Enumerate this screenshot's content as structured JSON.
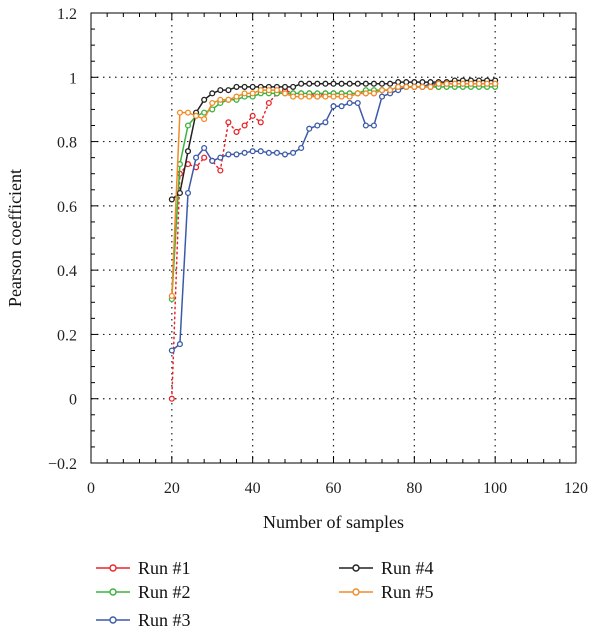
{
  "chart_data": {
    "type": "line",
    "xlabel": "Number of samples",
    "ylabel": "Pearson coefficient",
    "xlim": [
      0,
      120
    ],
    "ylim": [
      -0.2,
      1.2
    ],
    "x_ticks": [
      0,
      20,
      40,
      60,
      80,
      100,
      120
    ],
    "y_ticks": [
      -0.2,
      0,
      0.2,
      0.4,
      0.6,
      0.8,
      1,
      1.2
    ],
    "x_tick_labels": [
      "0",
      "20",
      "40",
      "60",
      "80",
      "100",
      "120"
    ],
    "y_tick_labels": [
      "−0.2",
      "0",
      "0.2",
      "0.4",
      "0.6",
      "0.8",
      "1",
      "1.2"
    ],
    "grid": true,
    "legend_position": "bottom",
    "series": [
      {
        "name": "Run #1",
        "color": "#e8262a",
        "linestyle": "dotted",
        "x": [
          20,
          22,
          24,
          26,
          28,
          30,
          32,
          34,
          36,
          38,
          40,
          42,
          44,
          46,
          48,
          50,
          52,
          54,
          56,
          58,
          60,
          62,
          64,
          66,
          68,
          70,
          72,
          74,
          76,
          78,
          80,
          82,
          84,
          86,
          88,
          90,
          92,
          94,
          96,
          98,
          100
        ],
        "y": [
          0.0,
          0.7,
          0.73,
          0.72,
          0.75,
          0.74,
          0.71,
          0.86,
          0.83,
          0.85,
          0.88,
          0.86,
          0.92,
          0.95,
          0.96,
          0.95,
          0.95,
          0.95,
          0.94,
          0.95,
          0.95,
          0.95,
          0.95,
          0.95,
          0.95,
          0.95,
          0.96,
          0.96,
          0.97,
          0.97,
          0.97,
          0.97,
          0.97,
          0.97,
          0.98,
          0.98,
          0.98,
          0.98,
          0.98,
          0.98,
          0.98
        ]
      },
      {
        "name": "Run #2",
        "color": "#3cb43c",
        "linestyle": "solid",
        "x": [
          20,
          22,
          24,
          26,
          28,
          30,
          32,
          34,
          36,
          38,
          40,
          42,
          44,
          46,
          48,
          50,
          52,
          54,
          56,
          58,
          60,
          62,
          64,
          66,
          68,
          70,
          72,
          74,
          76,
          78,
          80,
          82,
          84,
          86,
          88,
          90,
          92,
          94,
          96,
          98,
          100
        ],
        "y": [
          0.31,
          0.73,
          0.85,
          0.88,
          0.89,
          0.9,
          0.92,
          0.93,
          0.93,
          0.94,
          0.94,
          0.95,
          0.95,
          0.95,
          0.95,
          0.95,
          0.95,
          0.95,
          0.95,
          0.95,
          0.95,
          0.95,
          0.95,
          0.95,
          0.96,
          0.96,
          0.96,
          0.96,
          0.97,
          0.97,
          0.97,
          0.97,
          0.97,
          0.97,
          0.97,
          0.97,
          0.97,
          0.97,
          0.97,
          0.97,
          0.97
        ]
      },
      {
        "name": "Run #3",
        "color": "#3c5aaa",
        "linestyle": "solid",
        "x": [
          20,
          22,
          24,
          26,
          28,
          30,
          32,
          34,
          36,
          38,
          40,
          42,
          44,
          46,
          48,
          50,
          52,
          54,
          56,
          58,
          60,
          62,
          64,
          66,
          68,
          70,
          72,
          74,
          76,
          78,
          80,
          82,
          84,
          86,
          88,
          90,
          92,
          94,
          96,
          98,
          100
        ],
        "y": [
          0.15,
          0.17,
          0.64,
          0.75,
          0.78,
          0.74,
          0.75,
          0.76,
          0.76,
          0.765,
          0.77,
          0.77,
          0.765,
          0.765,
          0.76,
          0.765,
          0.78,
          0.84,
          0.85,
          0.86,
          0.91,
          0.91,
          0.92,
          0.92,
          0.85,
          0.85,
          0.94,
          0.95,
          0.96,
          0.97,
          0.97,
          0.97,
          0.98,
          0.98,
          0.98,
          0.98,
          0.98,
          0.98,
          0.98,
          0.98,
          0.98
        ]
      },
      {
        "name": "Run #4",
        "color": "#222222",
        "linestyle": "solid",
        "x": [
          20,
          22,
          24,
          26,
          28,
          30,
          32,
          34,
          36,
          38,
          40,
          42,
          44,
          46,
          48,
          50,
          52,
          54,
          56,
          58,
          60,
          62,
          64,
          66,
          68,
          70,
          72,
          74,
          76,
          78,
          80,
          82,
          84,
          86,
          88,
          90,
          92,
          94,
          96,
          98,
          100
        ],
        "y": [
          0.62,
          0.64,
          0.77,
          0.89,
          0.93,
          0.95,
          0.96,
          0.96,
          0.97,
          0.97,
          0.97,
          0.97,
          0.97,
          0.97,
          0.97,
          0.97,
          0.98,
          0.98,
          0.98,
          0.98,
          0.98,
          0.98,
          0.98,
          0.98,
          0.98,
          0.98,
          0.98,
          0.98,
          0.985,
          0.985,
          0.985,
          0.985,
          0.985,
          0.985,
          0.985,
          0.99,
          0.99,
          0.99,
          0.99,
          0.99,
          0.99
        ]
      },
      {
        "name": "Run #5",
        "color": "#f08c28",
        "linestyle": "solid",
        "x": [
          20,
          22,
          24,
          26,
          28,
          30,
          32,
          34,
          36,
          38,
          40,
          42,
          44,
          46,
          48,
          50,
          52,
          54,
          56,
          58,
          60,
          62,
          64,
          66,
          68,
          70,
          72,
          74,
          76,
          78,
          80,
          82,
          84,
          86,
          88,
          90,
          92,
          94,
          96,
          98,
          100
        ],
        "y": [
          0.32,
          0.89,
          0.89,
          0.88,
          0.87,
          0.92,
          0.93,
          0.93,
          0.94,
          0.95,
          0.95,
          0.96,
          0.96,
          0.96,
          0.95,
          0.94,
          0.94,
          0.94,
          0.94,
          0.94,
          0.94,
          0.94,
          0.94,
          0.95,
          0.95,
          0.95,
          0.96,
          0.96,
          0.97,
          0.97,
          0.97,
          0.97,
          0.97,
          0.98,
          0.98,
          0.98,
          0.98,
          0.98,
          0.98,
          0.98,
          0.98
        ]
      }
    ]
  }
}
